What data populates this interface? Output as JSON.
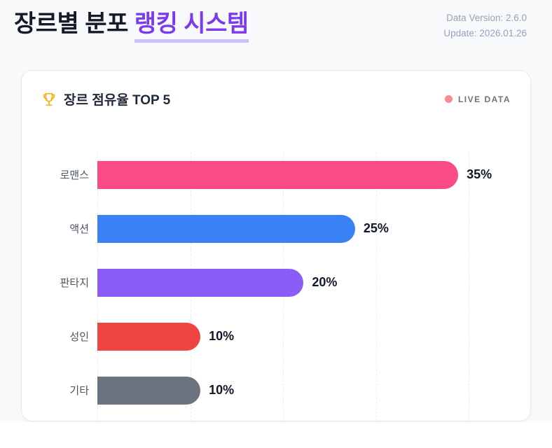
{
  "header": {
    "title_prefix": "장르별 분포 ",
    "title_accent": "랭킹 시스템",
    "meta_line1": "Data Version: 2.6.0",
    "meta_line2": "Update: 2026.01.26"
  },
  "card": {
    "title": "장르 점유율 TOP 5",
    "live_label": "LIVE DATA"
  },
  "colors": {
    "accent_purple": "#7C3AED",
    "accent_underline": "#CCC0F8",
    "live_dot": "#F98B8B",
    "trophy_gold": "#F0B41E",
    "page_bg": "#F8F9FB",
    "card_border": "#E4E9F0",
    "grid_line": "#E6EBF1"
  },
  "chart_data": {
    "type": "bar",
    "orientation": "horizontal",
    "title": "장르 점유율 TOP 5",
    "categories": [
      "로맨스",
      "액션",
      "판타지",
      "성인",
      "기타"
    ],
    "values": [
      35,
      25,
      20,
      10,
      10
    ],
    "value_labels": [
      "35%",
      "25%",
      "20%",
      "10%",
      "10%"
    ],
    "colors": [
      "#FA4B87",
      "#3B82F6",
      "#8B5CF6",
      "#EF4444",
      "#6B7280"
    ],
    "value_suffix": "%",
    "xlim": [
      0,
      36
    ],
    "grid": "vertical-dashed-5-lines",
    "legend": "none",
    "bar_style": "pill-right-rounded, flat left edge, value label bold right of bar"
  }
}
